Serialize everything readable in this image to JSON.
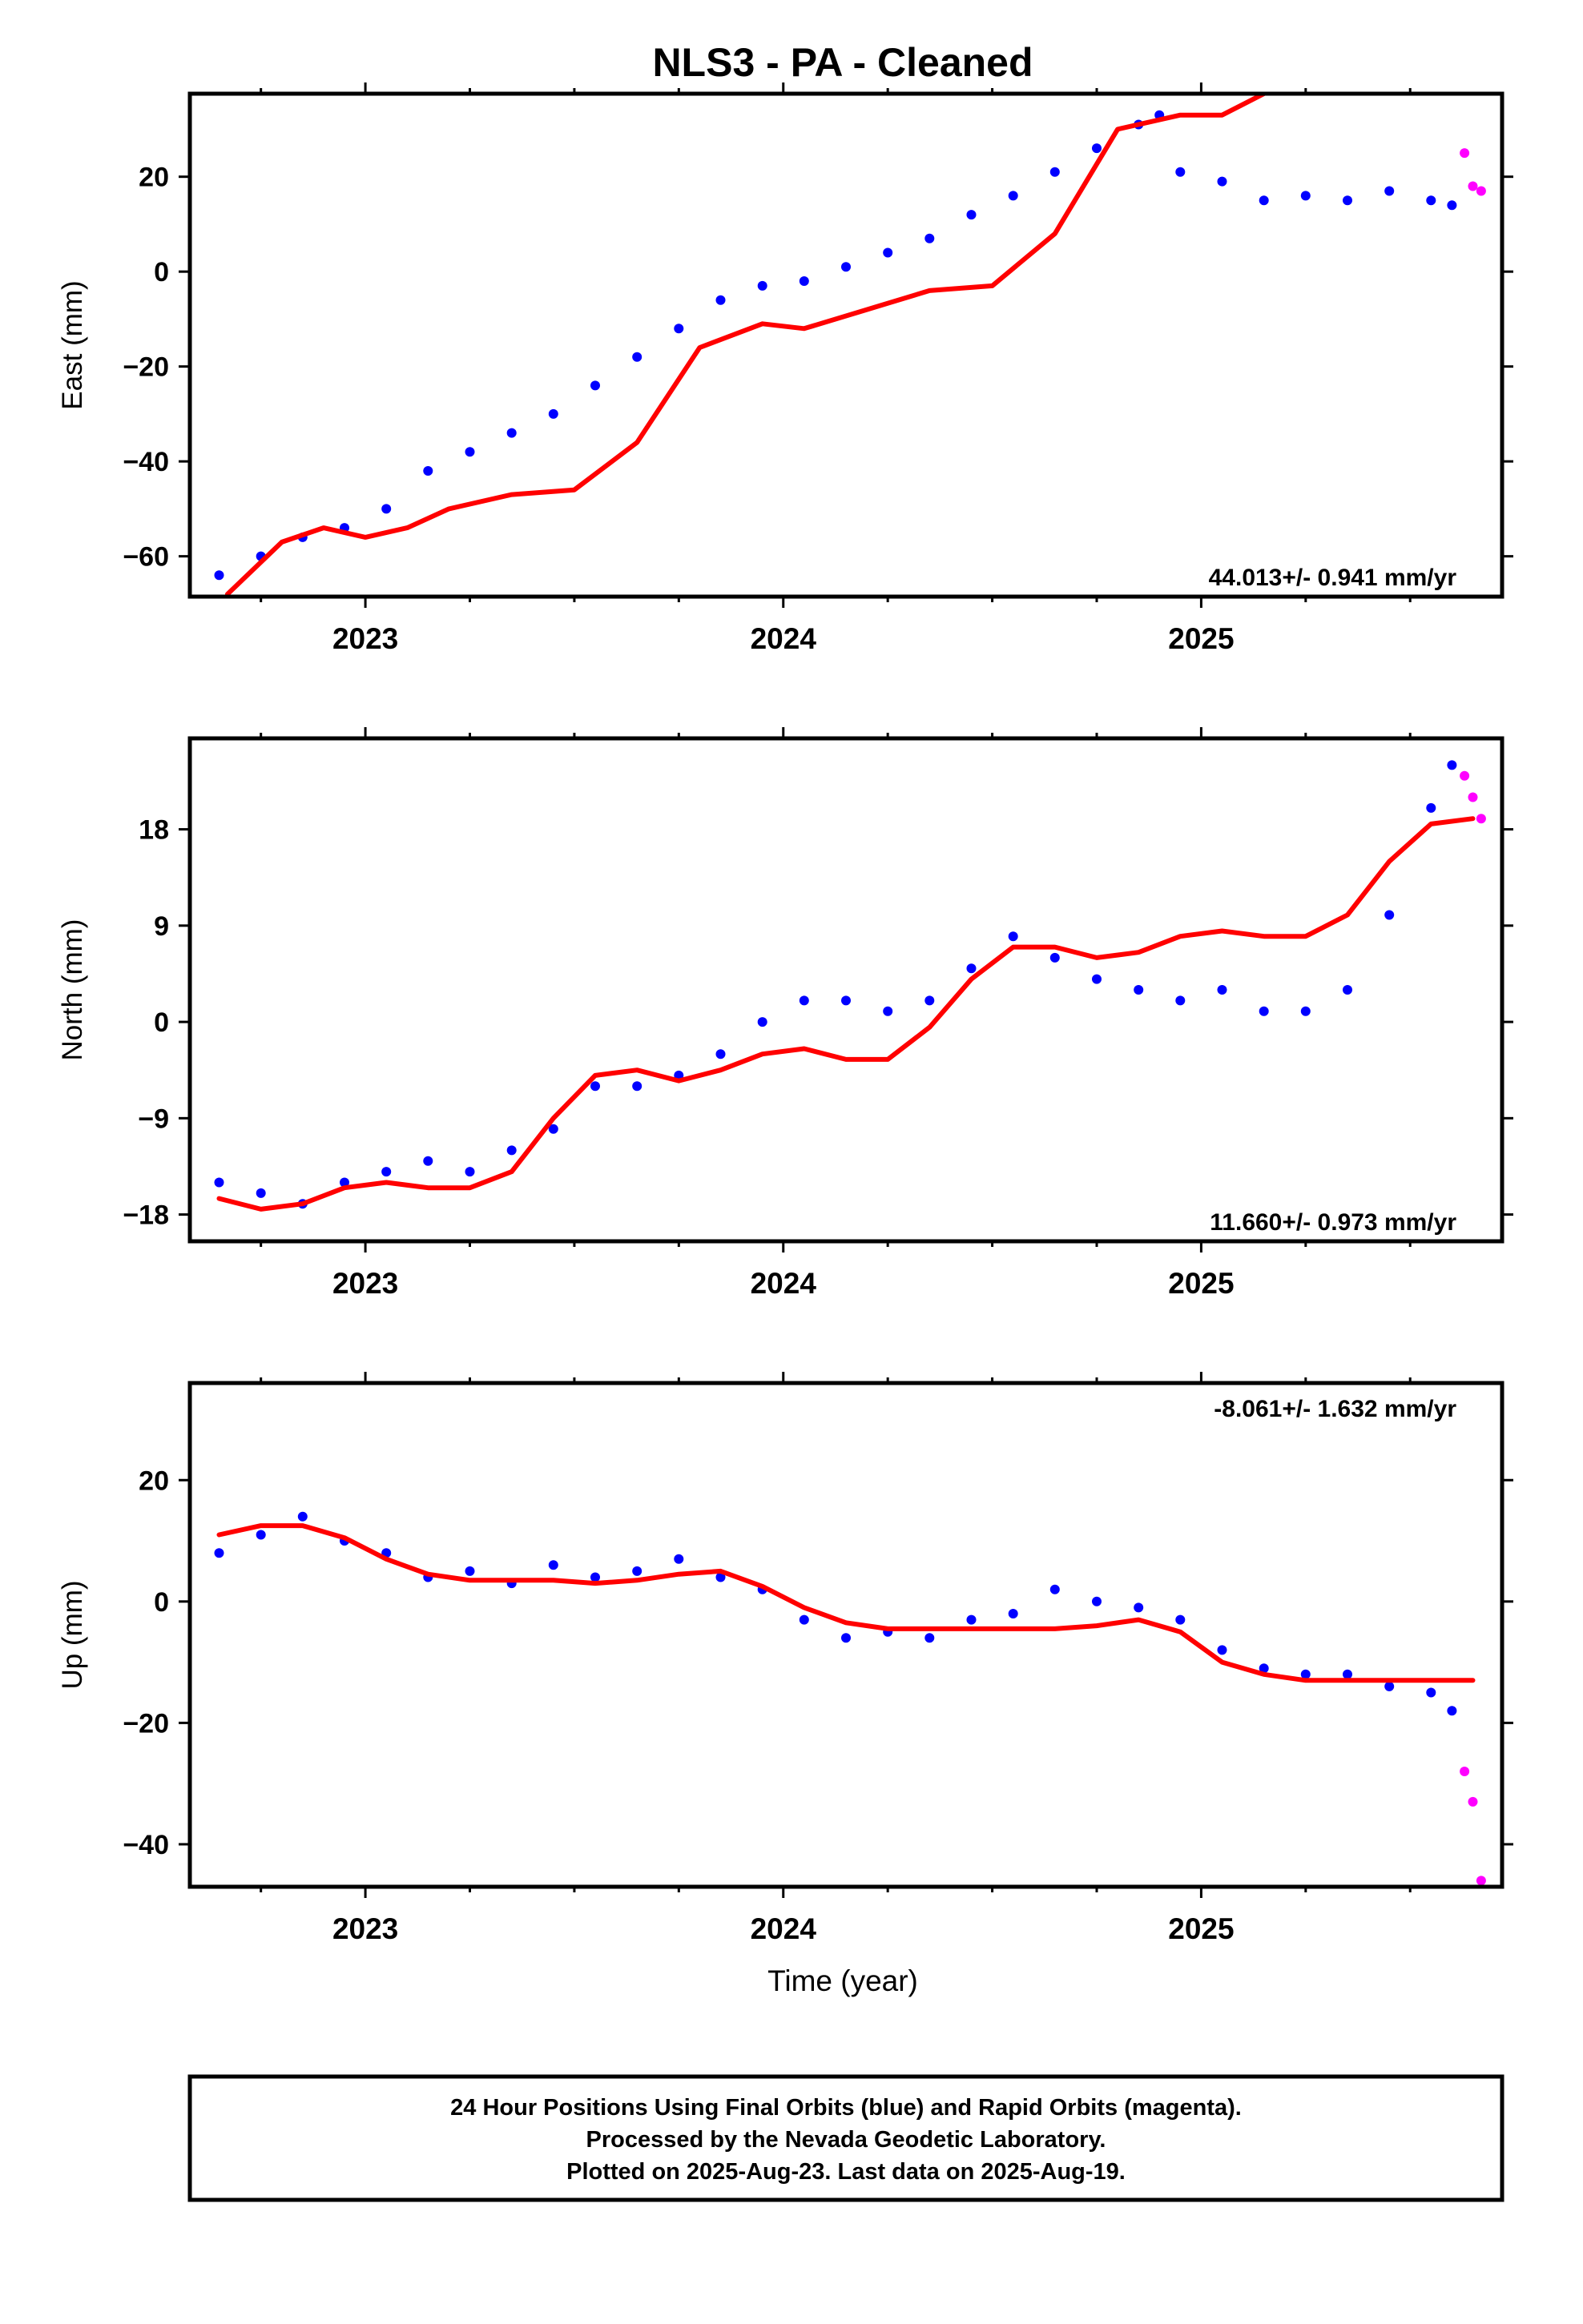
{
  "title": "NLS3  - PA - Cleaned",
  "xlabel": "Time (year)",
  "colors": {
    "final": "#0000ff",
    "rapid": "#ff00ff",
    "model": "#ff0000",
    "frame": "#000000"
  },
  "caption": {
    "line1": "24 Hour Positions Using Final Orbits (blue) and Rapid Orbits (magenta).",
    "line2": "Processed by the Nevada Geodetic Laboratory.",
    "line3": "Plotted on 2025-Aug-23. Last data on 2025-Aug-19."
  },
  "chart_data": [
    {
      "type": "scatter",
      "ylabel": "East (mm)",
      "xlim": [
        2022.58,
        2025.72
      ],
      "ylim": [
        -68.5,
        37.5
      ],
      "x_ticks": [
        2023,
        2024,
        2025
      ],
      "x_tick_labels": [
        "2023",
        "2024",
        "2025"
      ],
      "y_ticks": [
        -60,
        -40,
        -20,
        0,
        20
      ],
      "y_tick_labels": [
        "−60",
        "−40",
        "−20",
        "0",
        "20"
      ],
      "rate_label": "44.013+/- 0.941 mm/yr",
      "rate_position": "bottom-right",
      "series": [
        {
          "name": "Final Orbits (blue)",
          "kind": "points",
          "color": "#0000ff",
          "x": [
            2022.65,
            2022.75,
            2022.85,
            2022.95,
            2023.05,
            2023.15,
            2023.25,
            2023.35,
            2023.45,
            2023.55,
            2023.65,
            2023.75,
            2023.85,
            2023.95,
            2024.05,
            2024.15,
            2024.25,
            2024.35,
            2024.45,
            2024.55,
            2024.65,
            2024.75,
            2024.85,
            2024.9,
            2024.95,
            2025.05,
            2025.15,
            2025.25,
            2025.35,
            2025.45,
            2025.55,
            2025.6
          ],
          "y": [
            -64,
            -60,
            -56,
            -54,
            -50,
            -42,
            -38,
            -34,
            -30,
            -24,
            -18,
            -12,
            -6,
            -3,
            -2,
            1,
            4,
            7,
            12,
            16,
            21,
            26,
            31,
            33,
            21,
            19,
            15,
            16,
            15,
            17,
            15,
            14
          ]
        },
        {
          "name": "Rapid Orbits (magenta)",
          "kind": "points",
          "color": "#ff00ff",
          "x": [
            2025.63,
            2025.65,
            2025.67
          ],
          "y": [
            25,
            18,
            17
          ]
        },
        {
          "name": "",
          "kind": "line",
          "color": "#ff0000",
          "x": [
            2022.67,
            2022.8,
            2022.9,
            2023.0,
            2023.1,
            2023.2,
            2023.35,
            2023.5,
            2023.65,
            2023.8,
            2023.95,
            2024.05,
            2024.2,
            2024.35,
            2024.5,
            2024.65,
            2024.8,
            2024.95,
            2025.05,
            2025.15
          ],
          "y": [
            -68,
            -57,
            -54,
            -56,
            -54,
            -50,
            -47,
            -46,
            -36,
            -16,
            -11,
            -12,
            -8,
            -4,
            -3,
            8,
            30,
            33,
            33,
            37.5
          ]
        }
      ]
    },
    {
      "type": "scatter",
      "ylabel": "North (mm)",
      "xlim": [
        2022.58,
        2025.72
      ],
      "ylim": [
        -20.5,
        26.5
      ],
      "x_ticks": [
        2023,
        2024,
        2025
      ],
      "x_tick_labels": [
        "2023",
        "2024",
        "2025"
      ],
      "y_ticks": [
        -18,
        -9,
        0,
        9,
        18
      ],
      "y_tick_labels": [
        "−18",
        "−9",
        "0",
        "9",
        "18"
      ],
      "rate_label": "11.660+/- 0.973 mm/yr",
      "rate_position": "bottom-right",
      "series": [
        {
          "name": "Final Orbits (blue)",
          "kind": "points",
          "color": "#0000ff",
          "x": [
            2022.65,
            2022.75,
            2022.85,
            2022.95,
            2023.05,
            2023.15,
            2023.25,
            2023.35,
            2023.45,
            2023.55,
            2023.65,
            2023.75,
            2023.85,
            2023.95,
            2024.05,
            2024.15,
            2024.25,
            2024.35,
            2024.45,
            2024.55,
            2024.65,
            2024.75,
            2024.85,
            2024.95,
            2025.05,
            2025.15,
            2025.25,
            2025.35,
            2025.45,
            2025.55,
            2025.6
          ],
          "y": [
            -15,
            -16,
            -17,
            -15,
            -14,
            -13,
            -14,
            -12,
            -10,
            -6,
            -6,
            -5,
            -3,
            0,
            2,
            2,
            1,
            2,
            5,
            8,
            6,
            4,
            3,
            2,
            3,
            1,
            1,
            3,
            10,
            20,
            24
          ]
        },
        {
          "name": "Rapid Orbits (magenta)",
          "kind": "points",
          "color": "#ff00ff",
          "x": [
            2025.63,
            2025.65,
            2025.67
          ],
          "y": [
            23,
            21,
            19
          ]
        },
        {
          "name": "",
          "kind": "line",
          "color": "#ff0000",
          "x": [
            2022.65,
            2022.75,
            2022.85,
            2022.95,
            2023.05,
            2023.15,
            2023.25,
            2023.35,
            2023.45,
            2023.55,
            2023.65,
            2023.75,
            2023.85,
            2023.95,
            2024.05,
            2024.15,
            2024.25,
            2024.35,
            2024.45,
            2024.55,
            2024.65,
            2024.75,
            2024.85,
            2024.95,
            2025.05,
            2025.15,
            2025.25,
            2025.35,
            2025.45,
            2025.55,
            2025.65
          ],
          "y": [
            -16.5,
            -17.5,
            -17,
            -15.5,
            -15,
            -15.5,
            -15.5,
            -14,
            -9,
            -5,
            -4.5,
            -5.5,
            -4.5,
            -3,
            -2.5,
            -3.5,
            -3.5,
            -0.5,
            4,
            7,
            7,
            6,
            6.5,
            8,
            8.5,
            8,
            8,
            10,
            15,
            18.5,
            19
          ]
        }
      ]
    },
    {
      "type": "scatter",
      "ylabel": "Up (mm)",
      "xlim": [
        2022.58,
        2025.72
      ],
      "ylim": [
        -47,
        36
      ],
      "x_ticks": [
        2023,
        2024,
        2025
      ],
      "x_tick_labels": [
        "2023",
        "2024",
        "2025"
      ],
      "y_ticks": [
        -40,
        -20,
        0,
        20
      ],
      "y_tick_labels": [
        "−40",
        "−20",
        "0",
        "20"
      ],
      "rate_label": "-8.061+/- 1.632 mm/yr",
      "rate_position": "top-right",
      "series": [
        {
          "name": "Final Orbits (blue)",
          "kind": "points",
          "color": "#0000ff",
          "x": [
            2022.65,
            2022.75,
            2022.85,
            2022.95,
            2023.05,
            2023.15,
            2023.25,
            2023.35,
            2023.45,
            2023.55,
            2023.65,
            2023.75,
            2023.85,
            2023.95,
            2024.05,
            2024.15,
            2024.25,
            2024.35,
            2024.45,
            2024.55,
            2024.65,
            2024.75,
            2024.85,
            2024.95,
            2025.05,
            2025.15,
            2025.25,
            2025.35,
            2025.45,
            2025.55,
            2025.6
          ],
          "y": [
            8,
            11,
            14,
            10,
            8,
            4,
            5,
            3,
            6,
            4,
            5,
            7,
            4,
            2,
            -3,
            -6,
            -5,
            -6,
            -3,
            -2,
            2,
            0,
            -1,
            -3,
            -8,
            -11,
            -12,
            -12,
            -14,
            -15,
            -18
          ]
        },
        {
          "name": "Rapid Orbits (magenta)",
          "kind": "points",
          "color": "#ff00ff",
          "x": [
            2025.63,
            2025.65,
            2025.67
          ],
          "y": [
            -28,
            -33,
            -46
          ]
        },
        {
          "name": "",
          "kind": "line",
          "color": "#ff0000",
          "x": [
            2022.65,
            2022.75,
            2022.85,
            2022.95,
            2023.05,
            2023.15,
            2023.25,
            2023.35,
            2023.45,
            2023.55,
            2023.65,
            2023.75,
            2023.85,
            2023.95,
            2024.05,
            2024.15,
            2024.25,
            2024.35,
            2024.45,
            2024.55,
            2024.65,
            2024.75,
            2024.85,
            2024.95,
            2025.05,
            2025.15,
            2025.25,
            2025.35,
            2025.45,
            2025.55,
            2025.65
          ],
          "y": [
            11,
            12.5,
            12.5,
            10.5,
            7,
            4.5,
            3.5,
            3.5,
            3.5,
            3,
            3.5,
            4.5,
            5,
            2.5,
            -1,
            -3.5,
            -4.5,
            -4.5,
            -4.5,
            -4.5,
            -4.5,
            -4,
            -3,
            -5,
            -10,
            -12,
            -13,
            -13,
            -13,
            -13,
            -13
          ]
        }
      ]
    }
  ]
}
